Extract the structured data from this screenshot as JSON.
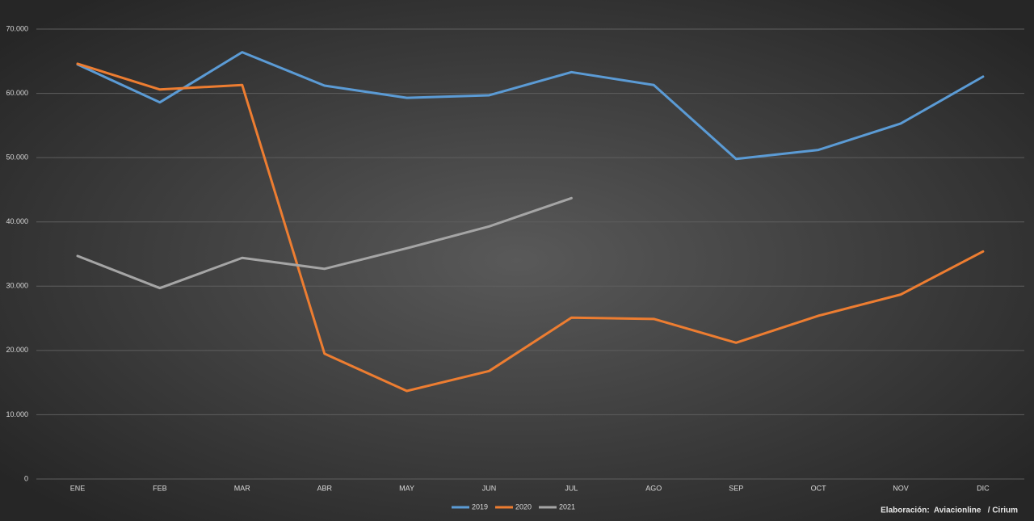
{
  "chart_data": {
    "type": "line",
    "categories": [
      "ENE",
      "FEB",
      "MAR",
      "ABR",
      "MAY",
      "JUN",
      "JUL",
      "AGO",
      "SEP",
      "OCT",
      "NOV",
      "DIC"
    ],
    "series": [
      {
        "name": "2019",
        "color": "#5b9bd5",
        "values": [
          64500,
          58600,
          66400,
          61200,
          59300,
          59700,
          63300,
          61300,
          49800,
          51200,
          55300,
          62600
        ]
      },
      {
        "name": "2020",
        "color": "#ed7d31",
        "values": [
          64600,
          60600,
          61300,
          19500,
          13700,
          16800,
          25100,
          24900,
          21200,
          25400,
          28700,
          35400
        ]
      },
      {
        "name": "2021",
        "color": "#a5a5a5",
        "values": [
          34700,
          29700,
          34400,
          32700,
          35900,
          39300,
          43700,
          null,
          null,
          null,
          null,
          null
        ]
      }
    ],
    "ylim": [
      0,
      70000
    ],
    "yticks": [
      0,
      {
        "value": 10000,
        "label": "10.000"
      },
      {
        "value": 20000,
        "label": "20.000"
      },
      {
        "value": 30000,
        "label": "30.000"
      },
      {
        "value": 40000,
        "label": "40.000"
      },
      {
        "value": 50000,
        "label": "50.000"
      },
      {
        "value": 60000,
        "label": "60.000"
      },
      {
        "value": 70000,
        "label": "70.000"
      }
    ],
    "grid": true,
    "legend": "bottom",
    "source": "Elaboración:  Aviacionline   / Cirium"
  }
}
